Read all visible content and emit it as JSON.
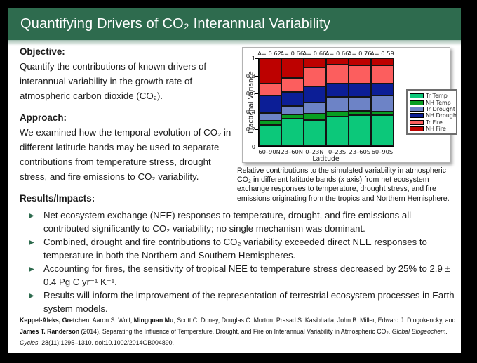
{
  "theme": {
    "accent_green": "#2e6b4e",
    "slide_background": "#ffffff",
    "frame_background": "#000000"
  },
  "title_bar": {
    "title": "Quantifying Drivers of CO₂ Interannual Variability"
  },
  "objective": {
    "heading": "Objective:",
    "text": "Quantify the contributions of known drivers of interannual variability in the growth rate of atmospheric carbon dioxide (CO₂)."
  },
  "approach": {
    "heading": "Approach:",
    "text": "We examined how the temporal evolution of CO₂ in different latitude bands may be used to separate contributions from temperature stress, drought stress, and fire emissions to CO₂ variability."
  },
  "results": {
    "heading": "Results/Impacts:",
    "bullets": [
      "Net ecosystem exchange (NEE) responses to temperature, drought, and fire emissions all contributed significantly to CO₂ variability; no single mechanism was dominant.",
      "Combined, drought and fire contributions to CO₂ variability exceeded direct NEE responses to temperature in both the Northern and Southern Hemispheres.",
      "Accounting for fires, the sensitivity of tropical NEE to temperature stress decreased by 25% to 2.9 ± 0.4 Pg C yr⁻¹ K⁻¹.",
      "Results will inform the improvement of the representation of terrestrial ecosystem processes in Earth system models."
    ]
  },
  "figure": {
    "caption": "Relative contributions to the simulated variability in atmospheric CO₂ in different latitude bands (x axis) from net ecosystem exchange responses to temperature, drought stress, and fire emissions originating from the tropics and Northern Hemisphere."
  },
  "chart_data": {
    "type": "bar",
    "stacked": true,
    "xlabel": "Latitude",
    "ylabel": "Fractional Variance",
    "ylim": [
      0,
      1
    ],
    "yticks": [
      0,
      0.2,
      0.4,
      0.6,
      0.8,
      1
    ],
    "grid": false,
    "legend_position": "right",
    "categories": [
      "60–90N",
      "23–60N",
      "0–23N",
      "0–23S",
      "23–60S",
      "60–90S"
    ],
    "bar_annotations": [
      "A= 0.62",
      "A= 0.66",
      "A= 0.66",
      "A= 0.66",
      "A= 0.76",
      "A= 0.59"
    ],
    "series": [
      {
        "name": "Tr Temp",
        "color": "#0cc87a",
        "values": [
          0.24,
          0.31,
          0.3,
          0.34,
          0.35,
          0.35
        ]
      },
      {
        "name": "NH Temp",
        "color": "#089e22",
        "values": [
          0.05,
          0.05,
          0.07,
          0.05,
          0.05,
          0.04
        ]
      },
      {
        "name": "Tr Drought",
        "color": "#6d83c6",
        "values": [
          0.09,
          0.1,
          0.13,
          0.17,
          0.16,
          0.19
        ]
      },
      {
        "name": "NH Drought",
        "color": "#0c1e96",
        "values": [
          0.2,
          0.16,
          0.18,
          0.15,
          0.15,
          0.13
        ]
      },
      {
        "name": "Tr Fire",
        "color": "#fc5e5e",
        "values": [
          0.13,
          0.16,
          0.22,
          0.22,
          0.21,
          0.21
        ]
      },
      {
        "name": "NH Fire",
        "color": "#bd0100",
        "values": [
          0.29,
          0.22,
          0.1,
          0.07,
          0.08,
          0.08
        ]
      }
    ]
  },
  "citation": {
    "segments": [
      {
        "text": "Keppel-Aleks, Gretchen",
        "bold": true
      },
      {
        "text": ", Aaron S. Wolf, "
      },
      {
        "text": "Mingquan Mu",
        "bold": true
      },
      {
        "text": ", Scott C. Doney, Douglas C. Morton, Prasad S. Kasibhatla, John B. Miller, Edward J. Dlugokencky, and "
      },
      {
        "text": "James T. Randerson",
        "bold": true
      },
      {
        "text": " (2014), Separating the Influence of Temperature, Drought, and Fire on Interannual Variability in Atmospheric CO₂. "
      },
      {
        "text": "Global Biogeochem. Cycles",
        "italic": true
      },
      {
        "text": ", 28(11):1295–1310. doi:10.1002/2014GB004890."
      }
    ]
  }
}
